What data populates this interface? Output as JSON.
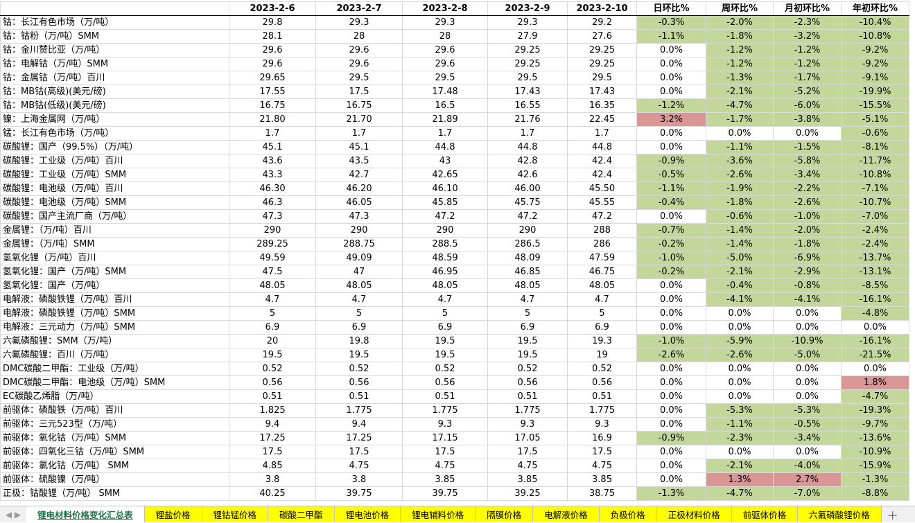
{
  "table": {
    "header": [
      "",
      "2023-2-6",
      "2023-2-7",
      "2023-2-8",
      "2023-2-9",
      "2023-2-10",
      "日环比%",
      "周环比%",
      "月初环比%",
      "年初环比%"
    ],
    "rows": [
      {
        "cells": [
          "钴：长江有色市场（万/吨）",
          "29.8",
          "29.3",
          "29.3",
          "29.3",
          "29.2",
          "-0.3%",
          "-2.0%",
          "-2.3%",
          "-10.4%"
        ],
        "fills": [
          "#c4d79b",
          "#c4d79b",
          "#c4d79b",
          "#c4d79b"
        ]
      },
      {
        "cells": [
          "钴：钴粉（万/吨）SMM",
          "28.1",
          "28",
          "28",
          "27.9",
          "27.6",
          "-1.1%",
          "-1.8%",
          "-3.2%",
          "-10.8%"
        ],
        "fills": [
          "#c4d79b",
          "#c4d79b",
          "#c4d79b",
          "#c4d79b"
        ]
      },
      {
        "cells": [
          "钴：金川赞比亚（万/吨）",
          "29.6",
          "29.6",
          "29.6",
          "29.25",
          "29.25",
          "0.0%",
          "-1.2%",
          "-1.2%",
          "-9.2%"
        ],
        "fills": [
          "#ffffff",
          "#c4d79b",
          "#c4d79b",
          "#c4d79b"
        ]
      },
      {
        "cells": [
          "钴：电解钴（万/吨）SMM",
          "29.6",
          "29.6",
          "29.6",
          "29.25",
          "29.25",
          "0.0%",
          "-1.2%",
          "-1.2%",
          "-9.2%"
        ],
        "fills": [
          "#ffffff",
          "#c4d79b",
          "#c4d79b",
          "#c4d79b"
        ]
      },
      {
        "cells": [
          "钴：金属钴（万/吨）百川",
          "29.65",
          "29.5",
          "29.5",
          "29.5",
          "29.5",
          "0.0%",
          "-1.3%",
          "-1.7%",
          "-9.1%"
        ],
        "fills": [
          "#ffffff",
          "#c4d79b",
          "#c4d79b",
          "#c4d79b"
        ]
      },
      {
        "cells": [
          "钴：MB钴(高级)(美元/磅)",
          "17.55",
          "17.5",
          "17.48",
          "17.43",
          "17.43",
          "0.0%",
          "-2.1%",
          "-5.2%",
          "-19.9%"
        ],
        "fills": [
          "#ffffff",
          "#c4d79b",
          "#c4d79b",
          "#c4d79b"
        ]
      },
      {
        "cells": [
          "钴：MB钴(低级)(美元/磅)",
          "16.75",
          "16.75",
          "16.5",
          "16.55",
          "16.35",
          "-1.2%",
          "-4.7%",
          "-6.0%",
          "-15.5%"
        ],
        "fills": [
          "#c4d79b",
          "#c4d79b",
          "#c4d79b",
          "#c4d79b"
        ]
      },
      {
        "cells": [
          "镍：上海金属网（万/吨）",
          "21.80",
          "21.70",
          "21.89",
          "21.76",
          "22.45",
          "3.2%",
          "-1.7%",
          "-3.8%",
          "-5.1%"
        ],
        "fills": [
          "#da9694",
          "#c4d79b",
          "#c4d79b",
          "#c4d79b"
        ]
      },
      {
        "cells": [
          "锰：长江有色市场（万/吨）",
          "1.7",
          "1.7",
          "1.7",
          "1.7",
          "1.7",
          "0.0%",
          "0.0%",
          "0.0%",
          "-0.6%"
        ],
        "fills": [
          "#ffffff",
          "#ffffff",
          "#ffffff",
          "#c4d79b"
        ]
      },
      {
        "cells": [
          "碳酸锂：国产（99.5%）（万/吨）",
          "45.1",
          "45.1",
          "44.8",
          "44.8",
          "44.8",
          "0.0%",
          "-1.1%",
          "-1.5%",
          "-8.1%"
        ],
        "fills": [
          "#ffffff",
          "#c4d79b",
          "#c4d79b",
          "#c4d79b"
        ]
      },
      {
        "cells": [
          "碳酸锂：工业级（万/吨）百川",
          "43.6",
          "43.5",
          "43",
          "42.8",
          "42.4",
          "-0.9%",
          "-3.6%",
          "-5.8%",
          "-11.7%"
        ],
        "fills": [
          "#c4d79b",
          "#c4d79b",
          "#c4d79b",
          "#c4d79b"
        ]
      },
      {
        "cells": [
          "碳酸锂：工业级（万/吨）SMM",
          "43.3",
          "42.7",
          "42.65",
          "42.6",
          "42.4",
          "-0.5%",
          "-2.6%",
          "-3.4%",
          "-10.8%"
        ],
        "fills": [
          "#c4d79b",
          "#c4d79b",
          "#c4d79b",
          "#c4d79b"
        ]
      },
      {
        "cells": [
          "碳酸锂：电池级（万/吨）百川",
          "46.30",
          "46.20",
          "46.10",
          "46.00",
          "45.50",
          "-1.1%",
          "-1.9%",
          "-2.2%",
          "-7.1%"
        ],
        "fills": [
          "#c4d79b",
          "#c4d79b",
          "#c4d79b",
          "#c4d79b"
        ]
      },
      {
        "cells": [
          "碳酸锂：电池级（万/吨）SMM",
          "46.3",
          "46.05",
          "45.85",
          "45.75",
          "45.55",
          "-0.4%",
          "-1.8%",
          "-2.6%",
          "-10.7%"
        ],
        "fills": [
          "#c4d79b",
          "#c4d79b",
          "#c4d79b",
          "#c4d79b"
        ]
      },
      {
        "cells": [
          "碳酸锂：国产主流厂商（万/吨）",
          "47.3",
          "47.3",
          "47.2",
          "47.2",
          "47.2",
          "0.0%",
          "-0.6%",
          "-1.0%",
          "-7.0%"
        ],
        "fills": [
          "#ffffff",
          "#c4d79b",
          "#c4d79b",
          "#c4d79b"
        ]
      },
      {
        "cells": [
          "金属锂：（万/吨）百川",
          "290",
          "290",
          "290",
          "290",
          "288",
          "-0.7%",
          "-1.4%",
          "-2.0%",
          "-2.4%"
        ],
        "fills": [
          "#c4d79b",
          "#c4d79b",
          "#c4d79b",
          "#c4d79b"
        ]
      },
      {
        "cells": [
          "金属锂：（万/吨）SMM",
          "289.25",
          "288.75",
          "288.5",
          "286.5",
          "286",
          "-0.2%",
          "-1.4%",
          "-1.8%",
          "-2.4%"
        ],
        "fills": [
          "#c4d79b",
          "#c4d79b",
          "#c4d79b",
          "#c4d79b"
        ]
      },
      {
        "cells": [
          "氢氧化锂（万/吨）百川",
          "49.59",
          "49.09",
          "48.59",
          "48.09",
          "47.59",
          "-1.0%",
          "-5.0%",
          "-6.9%",
          "-13.7%"
        ],
        "fills": [
          "#c4d79b",
          "#c4d79b",
          "#c4d79b",
          "#c4d79b"
        ]
      },
      {
        "cells": [
          "氢氧化锂：国产（万/吨）SMM",
          "47.5",
          "47",
          "46.95",
          "46.85",
          "46.75",
          "-0.2%",
          "-2.1%",
          "-2.9%",
          "-13.1%"
        ],
        "fills": [
          "#c4d79b",
          "#c4d79b",
          "#c4d79b",
          "#c4d79b"
        ]
      },
      {
        "cells": [
          "氢氧化锂：国产（万/吨）",
          "48.05",
          "48.05",
          "48.05",
          "48.05",
          "48.05",
          "0.0%",
          "-0.4%",
          "-0.8%",
          "-8.5%"
        ],
        "fills": [
          "#ffffff",
          "#c4d79b",
          "#c4d79b",
          "#c4d79b"
        ]
      },
      {
        "cells": [
          "电解液：磷酸铁锂（万/吨）百川",
          "4.7",
          "4.7",
          "4.7",
          "4.7",
          "4.7",
          "0.0%",
          "-4.1%",
          "-4.1%",
          "-16.1%"
        ],
        "fills": [
          "#ffffff",
          "#c4d79b",
          "#c4d79b",
          "#c4d79b"
        ]
      },
      {
        "cells": [
          "电解液：磷酸铁锂（万/吨）SMM",
          "5",
          "5",
          "5",
          "5",
          "5",
          "0.0%",
          "0.0%",
          "0.0%",
          "-4.8%"
        ],
        "fills": [
          "#ffffff",
          "#ffffff",
          "#ffffff",
          "#c4d79b"
        ]
      },
      {
        "cells": [
          "电解液：三元动力（万/吨）SMM",
          "6.9",
          "6.9",
          "6.9",
          "6.9",
          "6.9",
          "0.0%",
          "0.0%",
          "0.0%",
          "0.0%"
        ],
        "fills": [
          "#ffffff",
          "#ffffff",
          "#ffffff",
          "#ffffff"
        ]
      },
      {
        "cells": [
          "六氟磷酸锂：SMM（万/吨）",
          "20",
          "19.8",
          "19.5",
          "19.5",
          "19.3",
          "-1.0%",
          "-5.9%",
          "-10.9%",
          "-16.1%"
        ],
        "fills": [
          "#c4d79b",
          "#c4d79b",
          "#c4d79b",
          "#c4d79b"
        ]
      },
      {
        "cells": [
          "六氟磷酸锂：百川（万/吨）",
          "19.5",
          "19.5",
          "19.5",
          "19.5",
          "19",
          "-2.6%",
          "-2.6%",
          "-5.0%",
          "-21.5%"
        ],
        "fills": [
          "#c4d79b",
          "#c4d79b",
          "#c4d79b",
          "#c4d79b"
        ]
      },
      {
        "cells": [
          "DMC碳酸二甲酯：工业级（万/吨）",
          "0.52",
          "0.52",
          "0.52",
          "0.52",
          "0.52",
          "0.0%",
          "0.0%",
          "0.0%",
          "0.0%"
        ],
        "fills": [
          "#ffffff",
          "#ffffff",
          "#ffffff",
          "#ffffff"
        ]
      },
      {
        "cells": [
          "DMC碳酸二甲酯：电池级（万/吨）SMM",
          "0.56",
          "0.56",
          "0.56",
          "0.56",
          "0.56",
          "0.0%",
          "0.0%",
          "0.0%",
          "1.8%"
        ],
        "fills": [
          "#ffffff",
          "#ffffff",
          "#ffffff",
          "#da9694"
        ]
      },
      {
        "cells": [
          "EC碳酸乙烯脂（万/吨）",
          "0.51",
          "0.51",
          "0.51",
          "0.51",
          "0.51",
          "0.0%",
          "0.0%",
          "0.0%",
          "-4.7%"
        ],
        "fills": [
          "#ffffff",
          "#ffffff",
          "#ffffff",
          "#c4d79b"
        ]
      },
      {
        "cells": [
          "前驱体：磷酸铁（万/吨）百川",
          "1.825",
          "1.775",
          "1.775",
          "1.775",
          "1.775",
          "0.0%",
          "-5.3%",
          "-5.3%",
          "-19.3%"
        ],
        "fills": [
          "#ffffff",
          "#c4d79b",
          "#c4d79b",
          "#c4d79b"
        ]
      },
      {
        "cells": [
          "前驱体：三元523型（万/吨）",
          "9.4",
          "9.4",
          "9.3",
          "9.3",
          "9.3",
          "0.0%",
          "-1.1%",
          "-0.5%",
          "-9.7%"
        ],
        "fills": [
          "#ffffff",
          "#c4d79b",
          "#c4d79b",
          "#c4d79b"
        ]
      },
      {
        "cells": [
          "前驱体：氧化钴（万/吨）SMM",
          "17.25",
          "17.25",
          "17.15",
          "17.05",
          "16.9",
          "-0.9%",
          "-2.3%",
          "-3.4%",
          "-13.6%"
        ],
        "fills": [
          "#c4d79b",
          "#c4d79b",
          "#c4d79b",
          "#c4d79b"
        ]
      },
      {
        "cells": [
          "前驱体：四氧化三钴（万/吨）SMM",
          "17.5",
          "17.5",
          "17.5",
          "17.5",
          "17.5",
          "0.0%",
          "0.0%",
          "0.0%",
          "-10.9%"
        ],
        "fills": [
          "#ffffff",
          "#ffffff",
          "#ffffff",
          "#c4d79b"
        ]
      },
      {
        "cells": [
          "前驱体：氯化钴（万/吨） SMM",
          "4.85",
          "4.75",
          "4.75",
          "4.75",
          "4.75",
          "0.0%",
          "-2.1%",
          "-4.0%",
          "-15.9%"
        ],
        "fills": [
          "#ffffff",
          "#c4d79b",
          "#c4d79b",
          "#c4d79b"
        ]
      },
      {
        "cells": [
          "前驱体：硫酸镍（万/吨）",
          "3.8",
          "3.8",
          "3.85",
          "3.85",
          "3.85",
          "0.0%",
          "1.3%",
          "2.7%",
          "-1.3%"
        ],
        "fills": [
          "#ffffff",
          "#da9694",
          "#da9694",
          "#c4d79b"
        ]
      },
      {
        "cells": [
          "正极：钴酸锂（万/吨） SMM",
          "40.25",
          "39.75",
          "39.75",
          "39.25",
          "38.75",
          "-1.3%",
          "-4.7%",
          "-7.0%",
          "-8.8%"
        ],
        "fills": [
          "#c4d79b",
          "#c4d79b",
          "#c4d79b",
          "#c4d79b"
        ]
      }
    ]
  },
  "tabs": [
    "锂电材料价格变化汇总表",
    "锂盐价格",
    "锂钴锰价格",
    "碳酸二甲酯",
    "锂电池价格",
    "锂电辅料价格",
    "隔膜价格",
    "电解液价格",
    "负极价格",
    "正极材料价格",
    "前驱体价格",
    "六氟磷酸锂价格"
  ],
  "active_tab": 0
}
